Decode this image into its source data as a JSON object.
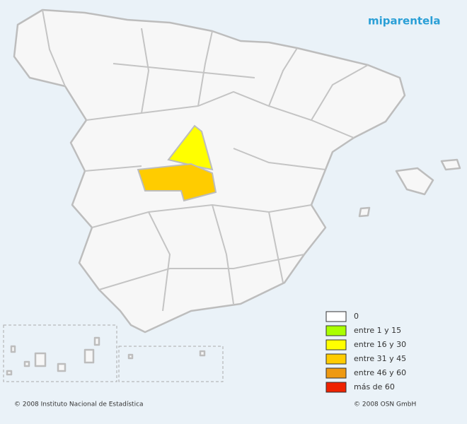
{
  "logo": "miparentela",
  "legend": [
    {
      "label": "0",
      "color": "#ffffff"
    },
    {
      "label": "entre 1 y 15",
      "color": "#aaff00"
    },
    {
      "label": "entre 16 y 30",
      "color": "#ffff00"
    },
    {
      "label": "entre 31 y 45",
      "color": "#ffcc00"
    },
    {
      "label": "entre 46 y 60",
      "color": "#ee9911"
    },
    {
      "label": "más de 60",
      "color": "#ee2200"
    }
  ],
  "footer": {
    "left": "© 2008 Instituto Nacional de Estadística",
    "right": "© 2008 OSN GmbH"
  }
}
